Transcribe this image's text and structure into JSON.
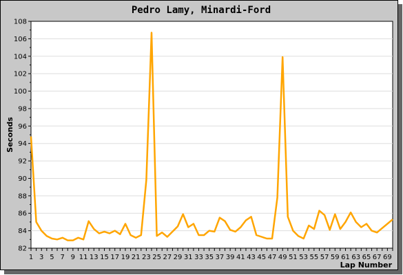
{
  "chart_data": {
    "type": "line",
    "title": "Pedro Lamy, Minardi-Ford",
    "xlabel": "Lap Number",
    "ylabel": "Seconds",
    "xlim": [
      1,
      70
    ],
    "ylim": [
      82,
      108
    ],
    "yticks": [
      82,
      84,
      86,
      88,
      90,
      92,
      94,
      96,
      98,
      100,
      102,
      104,
      106,
      108
    ],
    "xticks": [
      1,
      3,
      5,
      7,
      9,
      11,
      13,
      15,
      17,
      19,
      21,
      23,
      25,
      27,
      29,
      31,
      33,
      35,
      37,
      39,
      41,
      43,
      45,
      47,
      49,
      51,
      53,
      55,
      57,
      59,
      61,
      63,
      65,
      67,
      69
    ],
    "grid": true,
    "series": [
      {
        "color": "#ffa500",
        "x": [
          1,
          2,
          3,
          4,
          5,
          6,
          7,
          8,
          9,
          10,
          11,
          12,
          13,
          14,
          15,
          16,
          17,
          18,
          19,
          20,
          21,
          22,
          23,
          24,
          25,
          26,
          27,
          28,
          29,
          30,
          31,
          32,
          33,
          34,
          35,
          36,
          37,
          38,
          39,
          40,
          41,
          42,
          43,
          44,
          45,
          46,
          47,
          48,
          49,
          50,
          51,
          52,
          53,
          54,
          55,
          56,
          57,
          58,
          59,
          60,
          61,
          62,
          63,
          64,
          65,
          66,
          67,
          68,
          69,
          70
        ],
        "values": [
          94.8,
          85.0,
          84.0,
          83.4,
          83.1,
          83.0,
          83.2,
          82.9,
          82.9,
          83.2,
          83.0,
          85.1,
          84.2,
          83.7,
          83.9,
          83.7,
          84.0,
          83.6,
          84.8,
          83.5,
          83.2,
          83.5,
          89.8,
          106.7,
          83.4,
          83.8,
          83.3,
          83.9,
          84.5,
          85.9,
          84.4,
          84.8,
          83.5,
          83.5,
          84.0,
          83.9,
          85.5,
          85.1,
          84.1,
          83.9,
          84.4,
          85.2,
          85.6,
          83.5,
          83.3,
          83.1,
          83.1,
          87.8,
          103.9,
          85.6,
          84.0,
          83.4,
          83.1,
          84.6,
          84.2,
          86.3,
          85.8,
          84.1,
          85.9,
          84.2,
          85.0,
          86.1,
          85.0,
          84.4,
          84.8,
          84.0,
          83.8,
          84.3,
          84.8,
          85.3
        ]
      }
    ]
  }
}
